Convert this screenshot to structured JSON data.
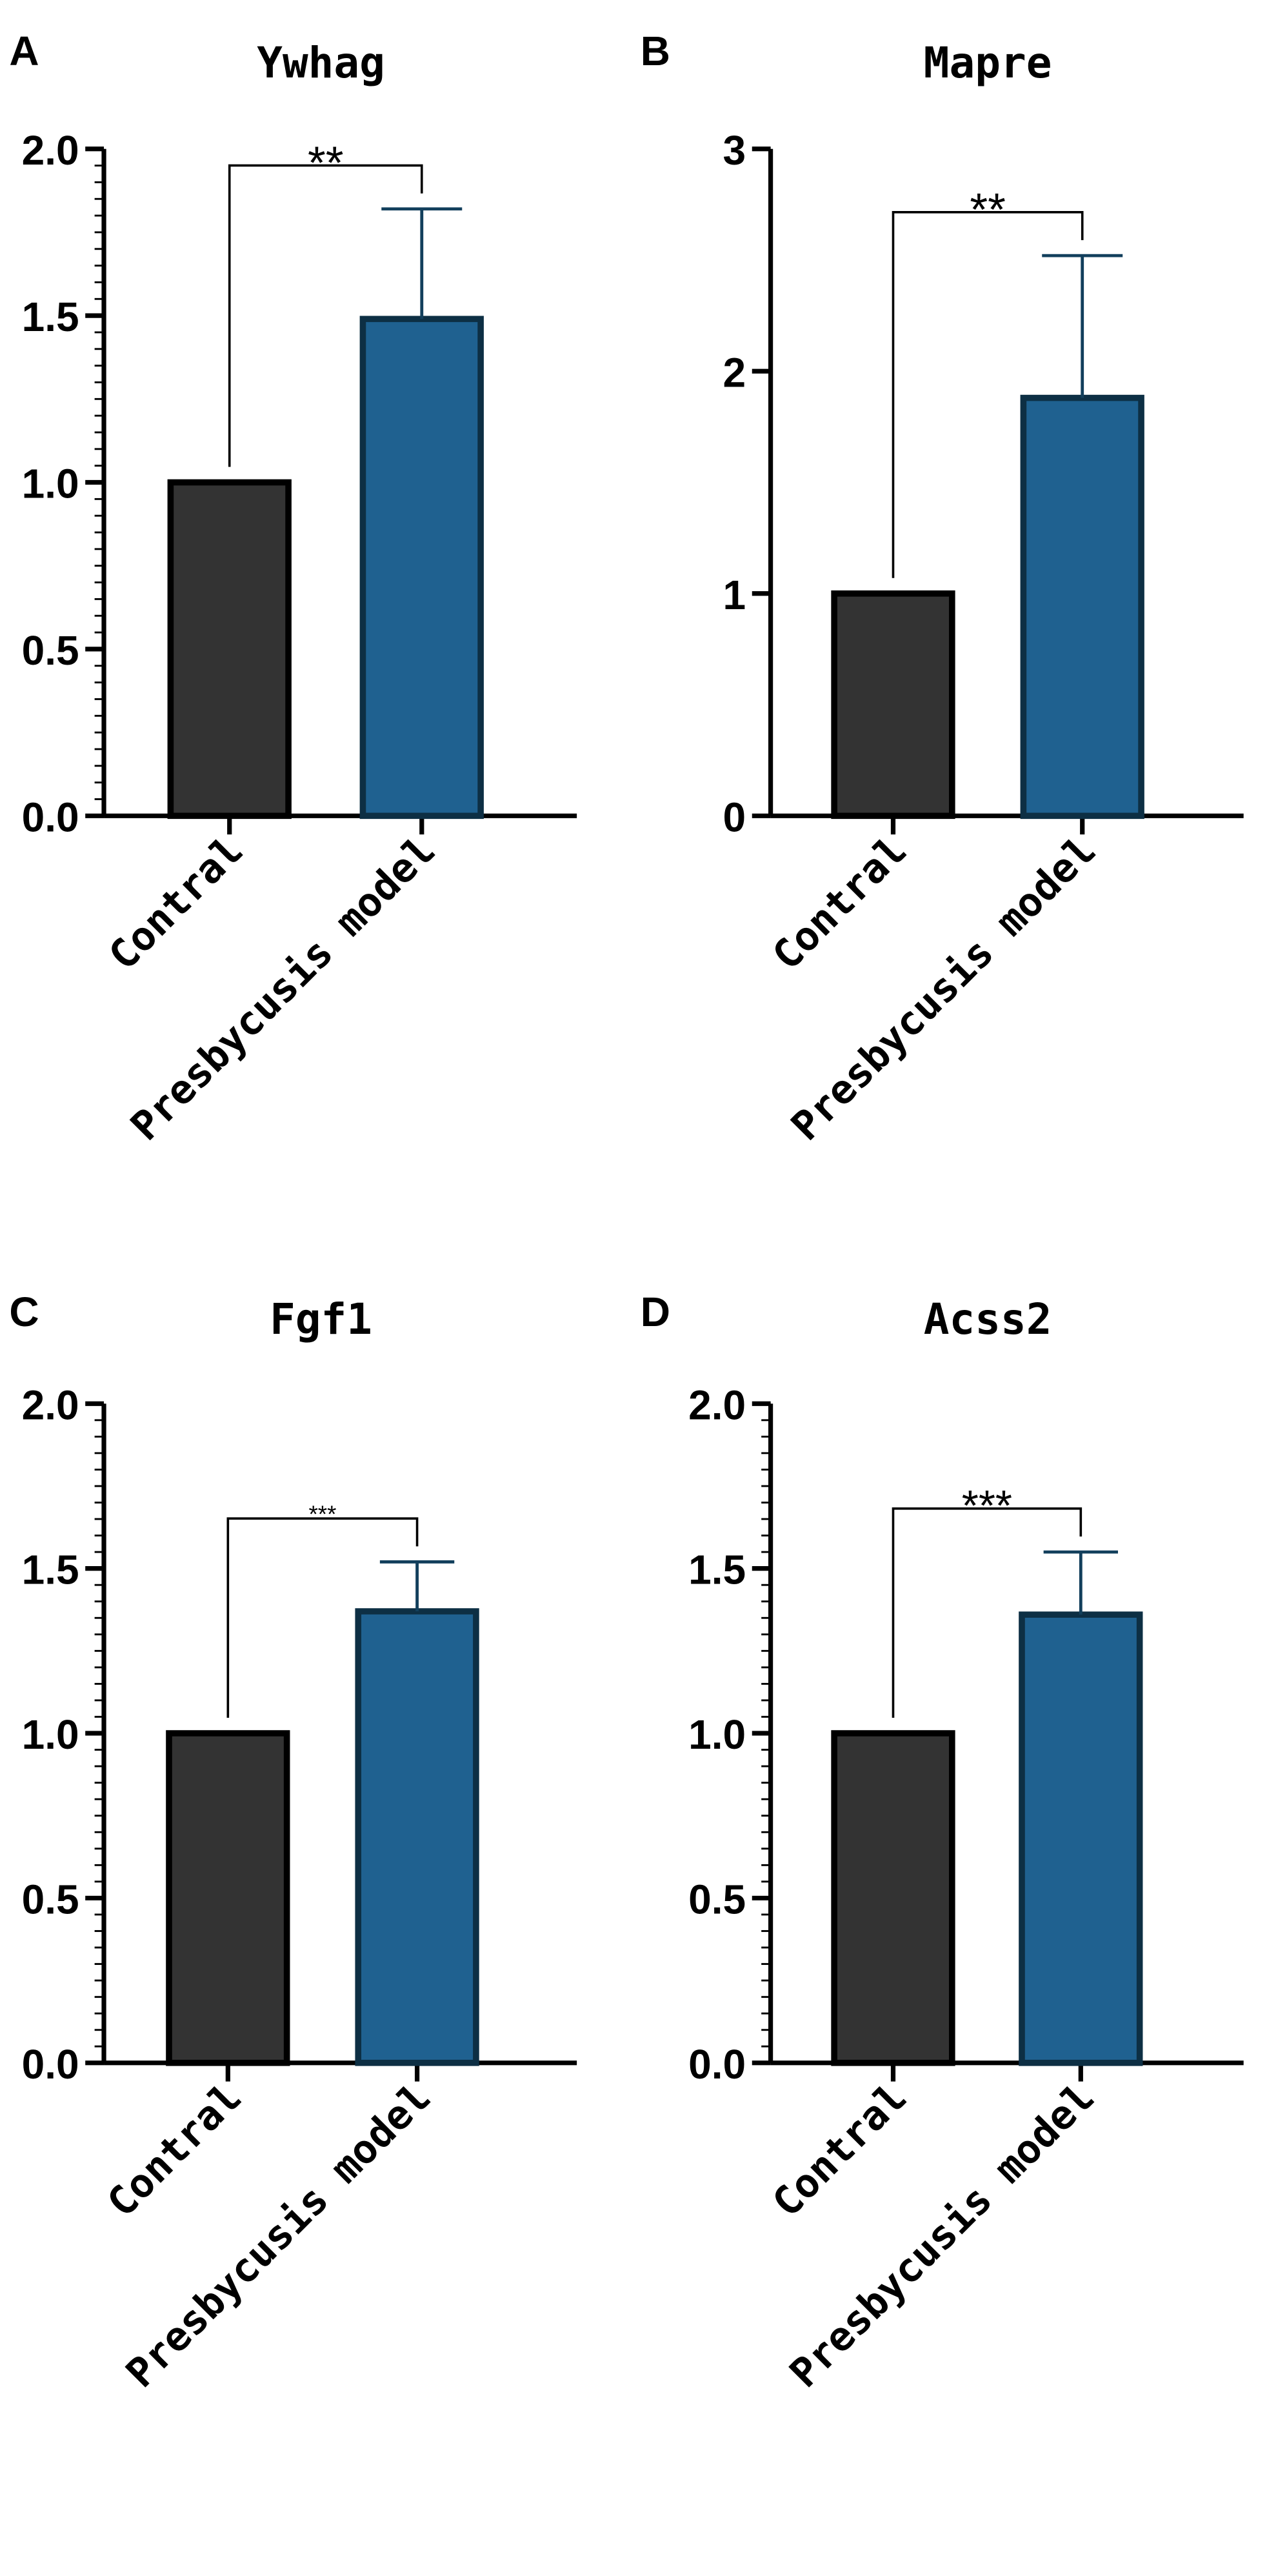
{
  "colors": {
    "control_fill": "#333333",
    "control_stroke": "#000000",
    "model_fill": "#1f6190",
    "model_stroke": "#0d2f44",
    "error_bar": "#123f5c",
    "axis": "#000000"
  },
  "chart_data": [
    {
      "panel": "A",
      "type": "bar",
      "title": "Ywhag",
      "categories": [
        "Contral",
        "Presbycusis model"
      ],
      "values": [
        1.0,
        1.49
      ],
      "errors": [
        0,
        0.33
      ],
      "ylim": [
        0,
        2.0
      ],
      "yticks": [
        0.0,
        0.5,
        1.0,
        1.5,
        2.0
      ],
      "ytick_labels": [
        "0.0",
        "0.5",
        "1.0",
        "1.5",
        "2.0"
      ],
      "minor_tick_step": 0.05,
      "significance": "**",
      "xlabel": "",
      "ylabel": ""
    },
    {
      "panel": "B",
      "type": "bar",
      "title": "Mapre",
      "categories": [
        "Contral",
        "Presbycusis model"
      ],
      "values": [
        1.0,
        1.88
      ],
      "errors": [
        0,
        0.64
      ],
      "ylim": [
        0,
        3
      ],
      "yticks": [
        0,
        1,
        2,
        3
      ],
      "ytick_labels": [
        "0",
        "1",
        "2",
        "3"
      ],
      "minor_tick_step": 0,
      "significance": "**",
      "xlabel": "",
      "ylabel": ""
    },
    {
      "panel": "C",
      "type": "bar",
      "title": "Fgf1",
      "categories": [
        "Contral",
        "Presbycusis model"
      ],
      "values": [
        1.0,
        1.37
      ],
      "errors": [
        0,
        0.15
      ],
      "ylim": [
        0,
        2.0
      ],
      "yticks": [
        0.0,
        0.5,
        1.0,
        1.5,
        2.0
      ],
      "ytick_labels": [
        "0.0",
        "0.5",
        "1.0",
        "1.5",
        "2.0"
      ],
      "minor_tick_step": 0.05,
      "significance": "***",
      "xlabel": "",
      "ylabel": ""
    },
    {
      "panel": "D",
      "type": "bar",
      "title": "Acss2",
      "categories": [
        "Contral",
        "Presbycusis model"
      ],
      "values": [
        1.0,
        1.36
      ],
      "errors": [
        0,
        0.19
      ],
      "ylim": [
        0,
        2.0
      ],
      "yticks": [
        0.0,
        0.5,
        1.0,
        1.5,
        2.0
      ],
      "ytick_labels": [
        "0.0",
        "0.5",
        "1.0",
        "1.5",
        "2.0"
      ],
      "minor_tick_step": 0.05,
      "significance": "***",
      "xlabel": "",
      "ylabel": ""
    }
  ]
}
